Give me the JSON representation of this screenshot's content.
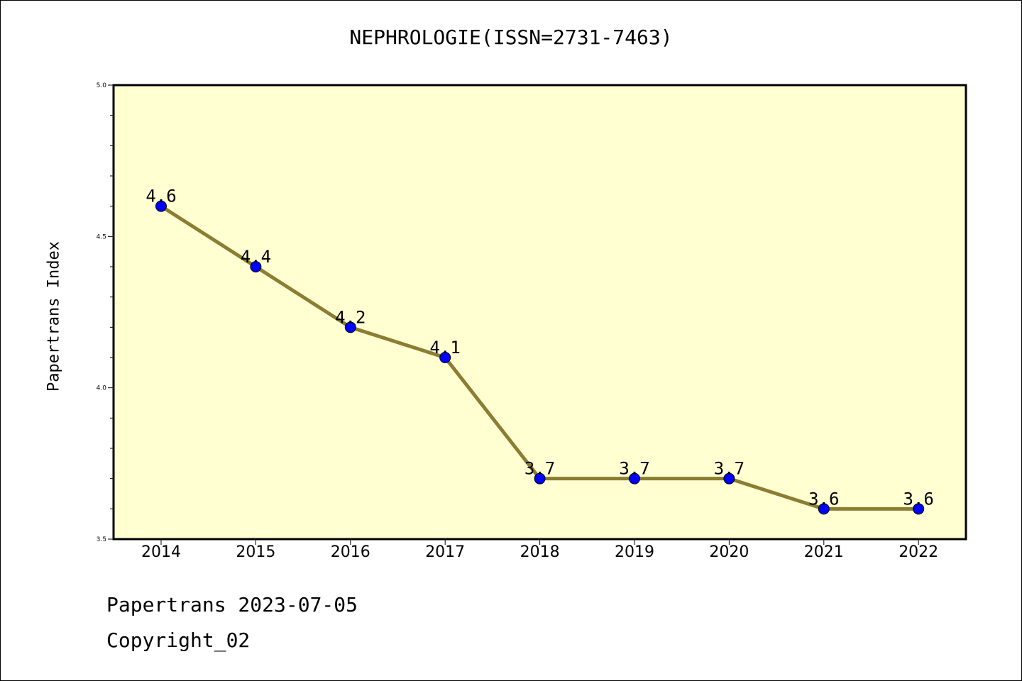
{
  "chart_data": {
    "type": "line",
    "title": "NEPHROLOGIE(ISSN=2731-7463)",
    "xlabel": "",
    "ylabel": "Papertrans Index",
    "categories": [
      "2014",
      "2015",
      "2016",
      "2017",
      "2018",
      "2019",
      "2020",
      "2021",
      "2022"
    ],
    "values": [
      4.6,
      4.4,
      4.2,
      4.1,
      3.7,
      3.7,
      3.7,
      3.6,
      3.6
    ],
    "data_labels": [
      "4.6",
      "4.4",
      "4.2",
      "4.1",
      "3.7",
      "3.7",
      "3.7",
      "3.6",
      "3.6"
    ],
    "ylim": [
      3.5,
      5.0
    ],
    "yticks": [
      "3.5",
      "4.0",
      "4.5",
      "5.0"
    ],
    "grid": false,
    "colors": {
      "plot_background": "#ffffd2",
      "line": "#8b7d32",
      "marker": "#0000ff"
    }
  },
  "footer": {
    "line1": "Papertrans 2023-07-05",
    "line2": "Copyright_02"
  }
}
